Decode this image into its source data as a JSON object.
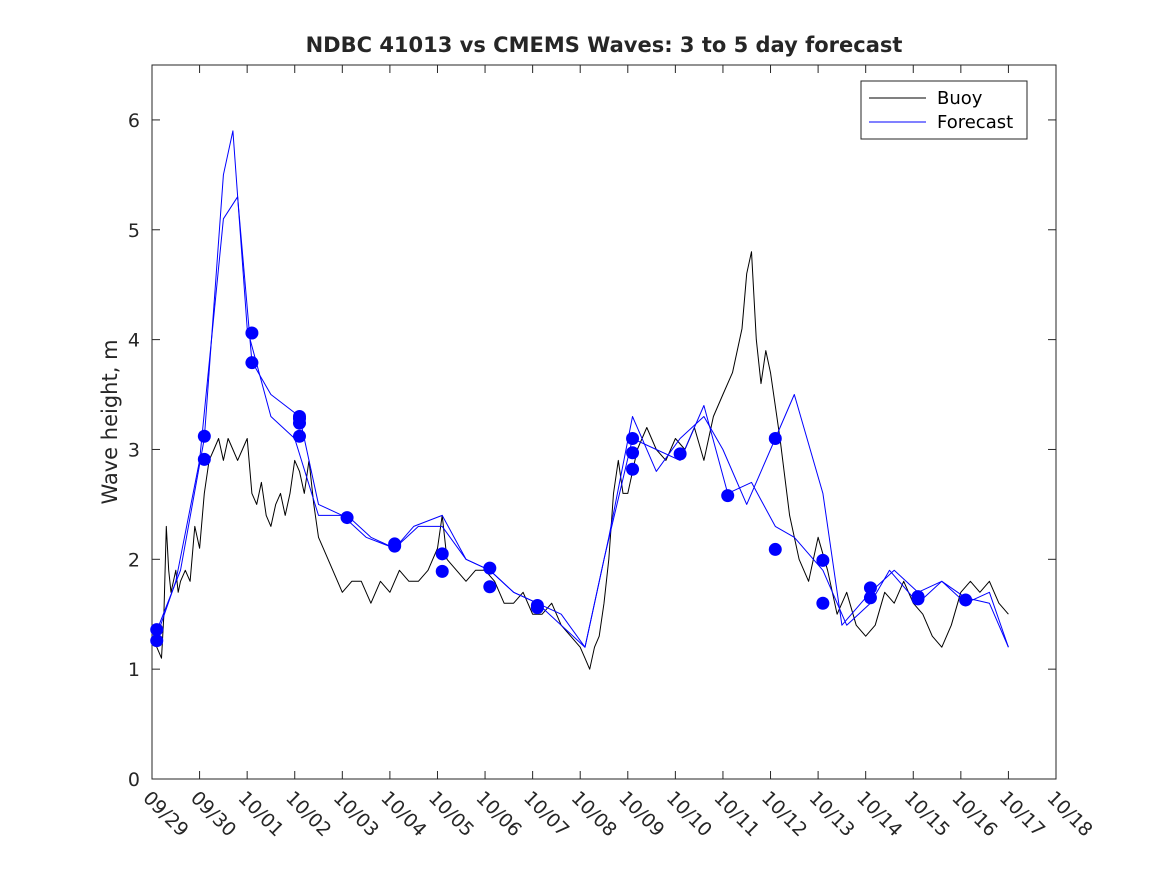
{
  "chart_data": {
    "type": "line",
    "title": "NDBC 41013 vs CMEMS Waves: 3 to 5 day forecast",
    "xlabel": "",
    "ylabel": "Wave height, m",
    "xlim": [
      0,
      19
    ],
    "ylim": [
      0,
      6.5
    ],
    "yticks": [
      0,
      1,
      2,
      3,
      4,
      5,
      6
    ],
    "ytick_labels": [
      "0",
      "1",
      "2",
      "3",
      "4",
      "5",
      "6"
    ],
    "xtick_labels": [
      "09/29",
      "09/30",
      "10/01",
      "10/02",
      "10/03",
      "10/04",
      "10/05",
      "10/06",
      "10/07",
      "10/08",
      "10/09",
      "10/10",
      "10/11",
      "10/12",
      "10/13",
      "10/14",
      "10/15",
      "10/16",
      "10/17",
      "10/18"
    ],
    "grid": false,
    "legend": {
      "position": "top-right",
      "entries": [
        {
          "label": "Buoy",
          "color": "#000000"
        },
        {
          "label": "Forecast",
          "color": "#0000ff"
        }
      ]
    },
    "colors": {
      "buoy": "#000000",
      "forecast": "#0000ff"
    },
    "series": [
      {
        "name": "Buoy",
        "color": "#000000",
        "x": [
          0,
          0.1,
          0.2,
          0.25,
          0.3,
          0.35,
          0.4,
          0.45,
          0.5,
          0.55,
          0.6,
          0.7,
          0.8,
          0.9,
          1.0,
          1.1,
          1.2,
          1.3,
          1.4,
          1.5,
          1.6,
          1.7,
          1.8,
          1.9,
          2.0,
          2.1,
          2.2,
          2.3,
          2.4,
          2.5,
          2.6,
          2.7,
          2.8,
          2.9,
          3.0,
          3.1,
          3.2,
          3.3,
          3.4,
          3.5,
          3.6,
          3.8,
          4.0,
          4.2,
          4.4,
          4.6,
          4.8,
          5.0,
          5.2,
          5.4,
          5.6,
          5.8,
          6.0,
          6.1,
          6.2,
          6.4,
          6.6,
          6.8,
          7.0,
          7.2,
          7.4,
          7.6,
          7.8,
          8.0,
          8.2,
          8.4,
          8.6,
          8.8,
          9.0,
          9.1,
          9.2,
          9.3,
          9.4,
          9.5,
          9.6,
          9.7,
          9.8,
          9.9,
          10.0,
          10.2,
          10.4,
          10.6,
          10.8,
          11.0,
          11.2,
          11.4,
          11.6,
          11.8,
          12.0,
          12.2,
          12.4,
          12.5,
          12.6,
          12.7,
          12.8,
          12.9,
          13.0,
          13.2,
          13.4,
          13.6,
          13.8,
          14.0,
          14.2,
          14.4,
          14.6,
          14.8,
          15.0,
          15.2,
          15.4,
          15.6,
          15.8,
          16.0,
          16.2,
          16.4,
          16.6,
          16.8,
          17.0,
          17.2,
          17.4,
          17.6,
          17.8,
          18.0
        ],
        "values": [
          1.3,
          1.2,
          1.1,
          1.5,
          2.3,
          1.9,
          1.7,
          1.8,
          1.9,
          1.7,
          1.8,
          1.9,
          1.8,
          2.3,
          2.1,
          2.6,
          2.9,
          3.0,
          3.1,
          2.9,
          3.1,
          3.0,
          2.9,
          3.0,
          3.1,
          2.6,
          2.5,
          2.7,
          2.4,
          2.3,
          2.5,
          2.6,
          2.4,
          2.6,
          2.9,
          2.8,
          2.6,
          2.9,
          2.5,
          2.2,
          2.1,
          1.9,
          1.7,
          1.8,
          1.8,
          1.6,
          1.8,
          1.7,
          1.9,
          1.8,
          1.8,
          1.9,
          2.1,
          2.4,
          2.0,
          1.9,
          1.8,
          1.9,
          1.9,
          1.8,
          1.6,
          1.6,
          1.7,
          1.5,
          1.5,
          1.6,
          1.4,
          1.3,
          1.2,
          1.1,
          1.0,
          1.2,
          1.3,
          1.6,
          2.0,
          2.6,
          2.9,
          2.6,
          2.6,
          3.0,
          3.2,
          3.0,
          2.9,
          3.1,
          3.0,
          3.2,
          2.9,
          3.3,
          3.5,
          3.7,
          4.1,
          4.6,
          4.8,
          4.0,
          3.6,
          3.9,
          3.7,
          3.1,
          2.4,
          2.0,
          1.8,
          2.2,
          1.9,
          1.5,
          1.7,
          1.4,
          1.3,
          1.4,
          1.7,
          1.6,
          1.8,
          1.6,
          1.5,
          1.3,
          1.2,
          1.4,
          1.7,
          1.8,
          1.7,
          1.8,
          1.6,
          1.5
        ]
      },
      {
        "name": "Forecast",
        "color": "#0000ff",
        "x": [
          0.1,
          0.5,
          1.0,
          1.5,
          1.8,
          2.1,
          2.5,
          3.1,
          3.5,
          4.0,
          4.5,
          5.1,
          5.5,
          6.1,
          6.6,
          7.1,
          7.6,
          8.1,
          8.6,
          9.1,
          9.5,
          10.1,
          10.6,
          11.1,
          11.6,
          12.1,
          12.6,
          13.1,
          13.5,
          14.1,
          14.6,
          15.1,
          15.5,
          16.1,
          16.6,
          17.1,
          17.6,
          18.0
        ],
        "values": [
          1.3,
          1.8,
          2.9,
          5.1,
          5.3,
          3.8,
          3.5,
          3.3,
          2.5,
          2.4,
          2.2,
          2.1,
          2.3,
          2.4,
          2.0,
          1.9,
          1.7,
          1.6,
          1.4,
          1.2,
          2.0,
          3.1,
          3.0,
          2.9,
          3.4,
          2.6,
          2.7,
          2.3,
          2.2,
          1.9,
          1.4,
          1.6,
          1.9,
          1.6,
          1.8,
          1.6,
          1.7,
          1.2
        ]
      },
      {
        "name": "Forecast",
        "color": "#0000ff",
        "x": [
          0.1,
          0.6,
          1.1,
          1.5,
          1.7,
          2.0,
          2.5,
          3.0,
          3.5,
          4.1,
          4.6,
          5.1,
          5.6,
          6.1,
          6.6,
          7.1,
          7.6,
          8.1,
          8.6,
          9.1,
          9.6,
          10.1,
          10.6,
          11.1,
          11.6,
          12.0,
          12.5,
          13.1,
          13.5,
          14.1,
          14.5,
          15.1,
          15.6,
          16.1,
          16.6,
          17.1,
          17.6,
          18.0
        ],
        "values": [
          1.35,
          1.9,
          3.1,
          5.5,
          5.9,
          4.1,
          3.3,
          3.1,
          2.4,
          2.4,
          2.2,
          2.1,
          2.3,
          2.3,
          2.0,
          1.9,
          1.7,
          1.6,
          1.5,
          1.2,
          2.2,
          3.3,
          2.8,
          3.1,
          3.3,
          3.0,
          2.5,
          3.1,
          3.5,
          2.6,
          1.4,
          1.7,
          1.9,
          1.7,
          1.8,
          1.65,
          1.6,
          1.2
        ]
      }
    ],
    "markers": {
      "name": "Forecast start points",
      "color": "#0000ff",
      "x": [
        0.1,
        0.1,
        1.1,
        1.1,
        2.1,
        2.1,
        3.1,
        3.1,
        3.1,
        3.1,
        4.1,
        5.1,
        5.1,
        6.1,
        6.1,
        7.1,
        7.1,
        8.1,
        8.1,
        10.1,
        10.1,
        10.1,
        11.1,
        12.1,
        13.1,
        13.1,
        14.1,
        14.1,
        15.1,
        15.1,
        16.1,
        16.1,
        17.1
      ],
      "values": [
        1.36,
        1.26,
        3.12,
        2.91,
        4.06,
        3.79,
        3.28,
        3.24,
        3.3,
        3.12,
        2.38,
        2.14,
        2.12,
        2.05,
        1.89,
        1.92,
        1.75,
        1.58,
        1.56,
        3.1,
        2.82,
        2.97,
        2.96,
        2.58,
        3.1,
        2.09,
        1.99,
        1.6,
        1.74,
        1.65,
        1.66,
        1.64,
        1.63
      ]
    }
  }
}
